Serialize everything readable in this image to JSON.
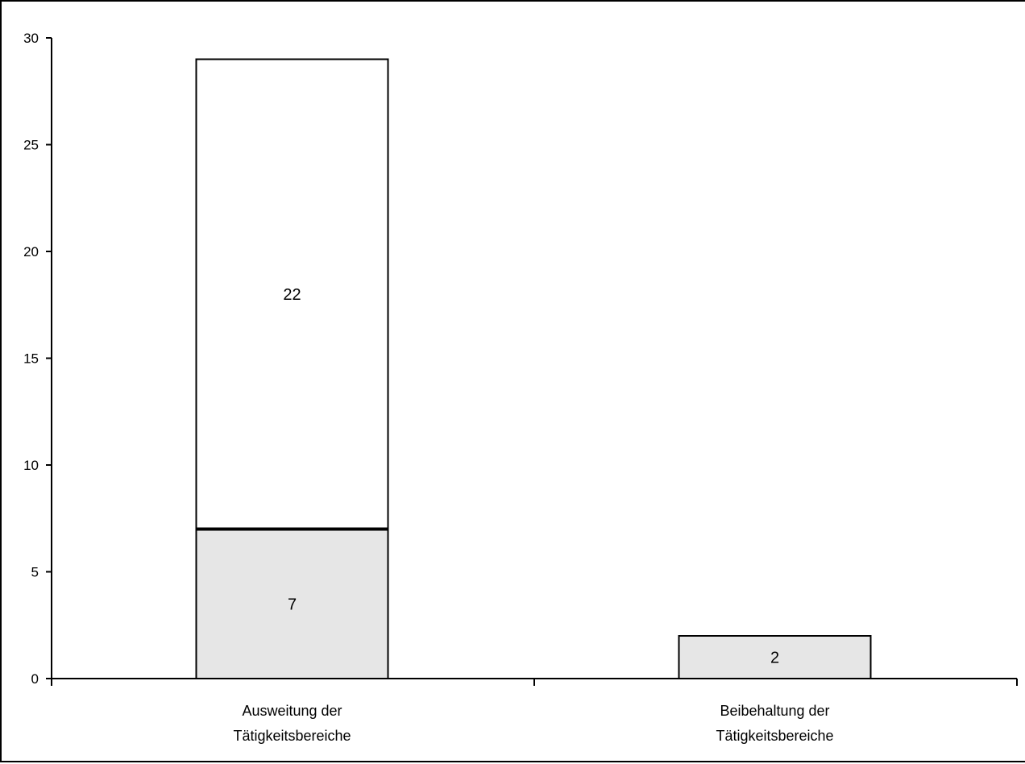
{
  "chart_data": {
    "type": "bar",
    "stacked": true,
    "categories": [
      [
        "Ausweitung der",
        "Tätigkeitsbereiche"
      ],
      [
        "Beibehaltung der",
        "Tätigkeitsbereiche"
      ]
    ],
    "series": [
      {
        "values": [
          7,
          2
        ],
        "color": "#e6e6e6"
      },
      {
        "values": [
          22,
          0
        ],
        "color": "#ffffff"
      }
    ],
    "ylim": [
      0,
      30
    ],
    "yticks": [
      0,
      5,
      10,
      15,
      20,
      25,
      30
    ],
    "ytick_labels": [
      "0",
      "5",
      "10",
      "15",
      "20",
      "25",
      "30"
    ],
    "data_labels": [
      [
        "7",
        "2"
      ],
      [
        "22",
        ""
      ]
    ],
    "grid": false,
    "legend": "none"
  }
}
